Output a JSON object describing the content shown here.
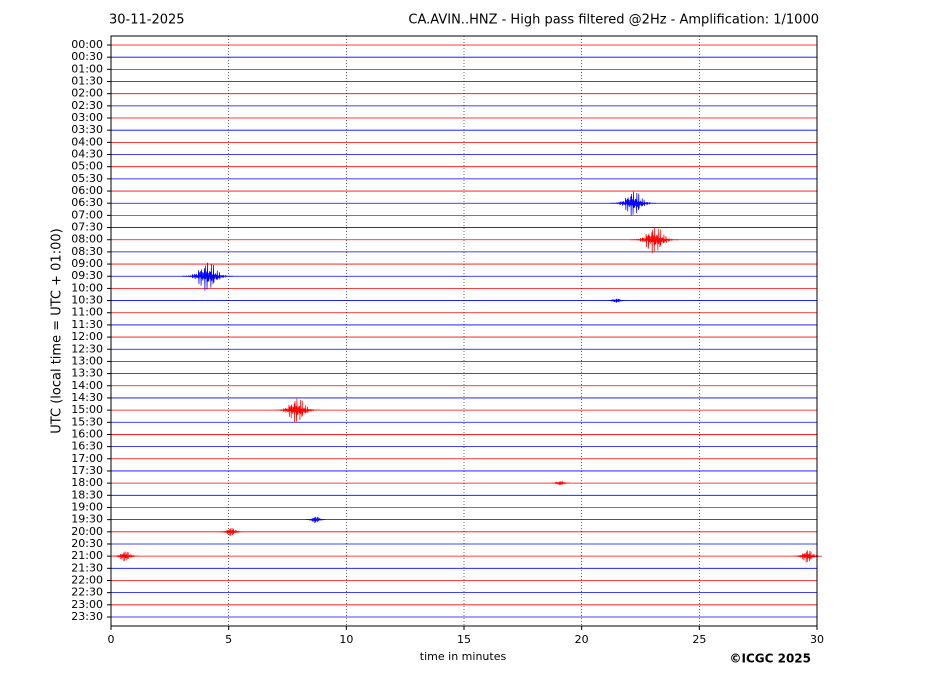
{
  "chart_data": {
    "type": "helicorder",
    "date": "30-11-2025",
    "title": "CA.AVIN..HNZ - High pass filtered @2Hz - Amplification: 1/1000",
    "xlabel": "time in minutes",
    "ylabel": "UTC (local time = UTC + 01:00)",
    "copyright": "©ICGC 2025",
    "xlim": [
      0,
      30
    ],
    "xticks": [
      0,
      5,
      10,
      15,
      20,
      25,
      30
    ],
    "grid": true,
    "colors": [
      "red",
      "blue"
    ],
    "categories": [
      "00:00",
      "00:30",
      "01:00",
      "01:30",
      "02:00",
      "02:30",
      "03:00",
      "03:30",
      "04:00",
      "04:30",
      "05:00",
      "05:30",
      "06:00",
      "06:30",
      "07:00",
      "07:30",
      "08:00",
      "08:30",
      "09:00",
      "09:30",
      "10:00",
      "10:30",
      "11:00",
      "11:30",
      "12:00",
      "12:30",
      "13:00",
      "13:30",
      "14:00",
      "14:30",
      "15:00",
      "15:30",
      "16:00",
      "16:30",
      "17:00",
      "17:30",
      "18:00",
      "18:30",
      "19:00",
      "19:30",
      "20:00",
      "20:30",
      "21:00",
      "21:30",
      "22:00",
      "22:30",
      "23:00",
      "23:30"
    ],
    "events": [
      {
        "row": 13,
        "minute": 22.2,
        "amplitude": 1.2
      },
      {
        "row": 16,
        "minute": 23.1,
        "amplitude": 1.3
      },
      {
        "row": 19,
        "minute": 4.1,
        "amplitude": 1.4
      },
      {
        "row": 30,
        "minute": 7.9,
        "amplitude": 1.2
      },
      {
        "row": 40,
        "minute": 5.1,
        "amplitude": 0.4
      },
      {
        "row": 42,
        "minute": 0.6,
        "amplitude": 0.5
      },
      {
        "row": 42,
        "minute": 29.6,
        "amplitude": 0.6
      },
      {
        "row": 39,
        "minute": 8.7,
        "amplitude": 0.3
      },
      {
        "row": 36,
        "minute": 19.1,
        "amplitude": 0.2
      },
      {
        "row": 21,
        "minute": 21.5,
        "amplitude": 0.2
      }
    ]
  }
}
